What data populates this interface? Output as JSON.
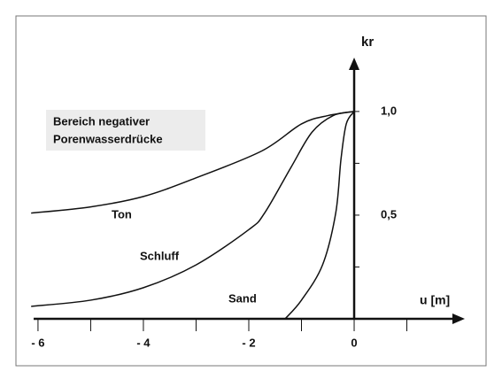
{
  "chart_data": {
    "type": "line",
    "y_label": "kr",
    "x_label": "u [m]",
    "annotation": [
      "Bereich negativer",
      "Porenwasserdrücke"
    ],
    "xlim": [
      -6.15,
      2.1
    ],
    "ylim": [
      0,
      1.26
    ],
    "xticks": [
      {
        "value": -6,
        "label": "- 6"
      },
      {
        "value": -4,
        "label": "- 4"
      },
      {
        "value": -2,
        "label": "- 2"
      },
      0
    ],
    "xminorticks": [
      -5,
      -3,
      -1,
      1
    ],
    "yticks": [
      {
        "value": 0.5,
        "label": "0,5"
      },
      {
        "value": 1,
        "label": "1,0"
      }
    ],
    "yminorticks": [
      0.25,
      0.75
    ],
    "series": [
      {
        "name": "Ton",
        "color": "#111111",
        "x": [
          -6.13,
          -5,
          -4,
          -3,
          -1.75,
          -1,
          -0.5,
          0
        ],
        "values": [
          0.51,
          0.54,
          0.59,
          0.68,
          0.81,
          0.94,
          0.98,
          1.0
        ]
      },
      {
        "name": "Schluff",
        "color": "#111111",
        "x": [
          -6.13,
          -5,
          -4,
          -3,
          -2,
          -1.7,
          -1.2,
          -0.8,
          -0.4,
          0
        ],
        "values": [
          0.06,
          0.09,
          0.15,
          0.26,
          0.43,
          0.51,
          0.73,
          0.9,
          0.98,
          1.0
        ]
      },
      {
        "name": "Sand",
        "color": "#111111",
        "x": [
          -1.31,
          -1,
          -0.6,
          -0.35,
          -0.25,
          -0.15,
          0
        ],
        "values": [
          0,
          0.09,
          0.26,
          0.51,
          0.77,
          0.94,
          1.0
        ]
      }
    ]
  }
}
